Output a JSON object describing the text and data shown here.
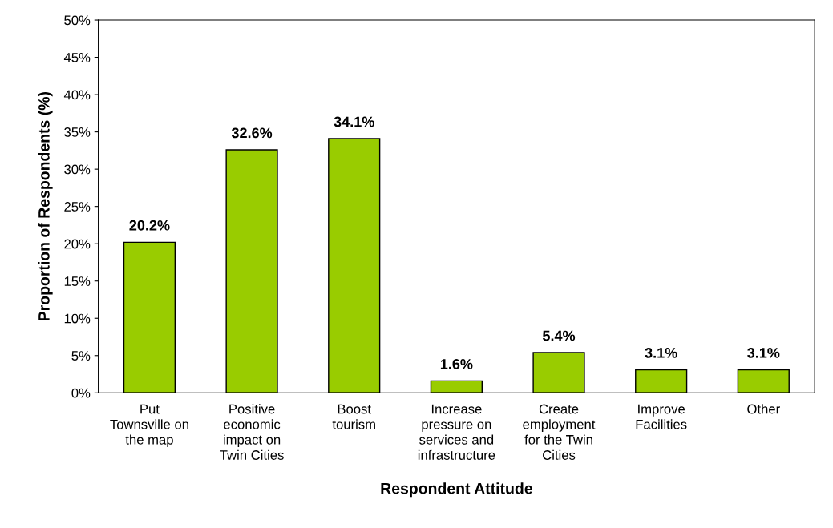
{
  "chart_data": {
    "type": "bar",
    "xlabel": "Respondent Attitude",
    "ylabel": "Proportion of Respondents (%)",
    "categories": [
      "Put\nTownsville on\nthe map",
      "Positive\neconomic\nimpact on\nTwin Cities",
      "Boost\ntourism",
      "Increase\npressure on\nservices and\ninfrastructure",
      "Create\nemployment\nfor the Twin\nCities",
      "Improve\nFacilities",
      "Other"
    ],
    "values": [
      20.2,
      32.6,
      34.1,
      1.6,
      5.4,
      3.1,
      3.1
    ],
    "value_labels": [
      "20.2%",
      "32.6%",
      "34.1%",
      "1.6%",
      "5.4%",
      "3.1%",
      "3.1%"
    ],
    "color": "#99cc00",
    "ylim": [
      0,
      50
    ],
    "yticks": [
      {
        "value": 0,
        "label": "0%"
      },
      {
        "value": 5,
        "label": "5%"
      },
      {
        "value": 10,
        "label": "10%"
      },
      {
        "value": 15,
        "label": "15%"
      },
      {
        "value": 20,
        "label": "20%"
      },
      {
        "value": 25,
        "label": "25%"
      },
      {
        "value": 30,
        "label": "30%"
      },
      {
        "value": 35,
        "label": "35%"
      },
      {
        "value": 40,
        "label": "40%"
      },
      {
        "value": 45,
        "label": "45%"
      },
      {
        "value": 50,
        "label": "50%"
      }
    ],
    "grid": false,
    "legend": false
  }
}
